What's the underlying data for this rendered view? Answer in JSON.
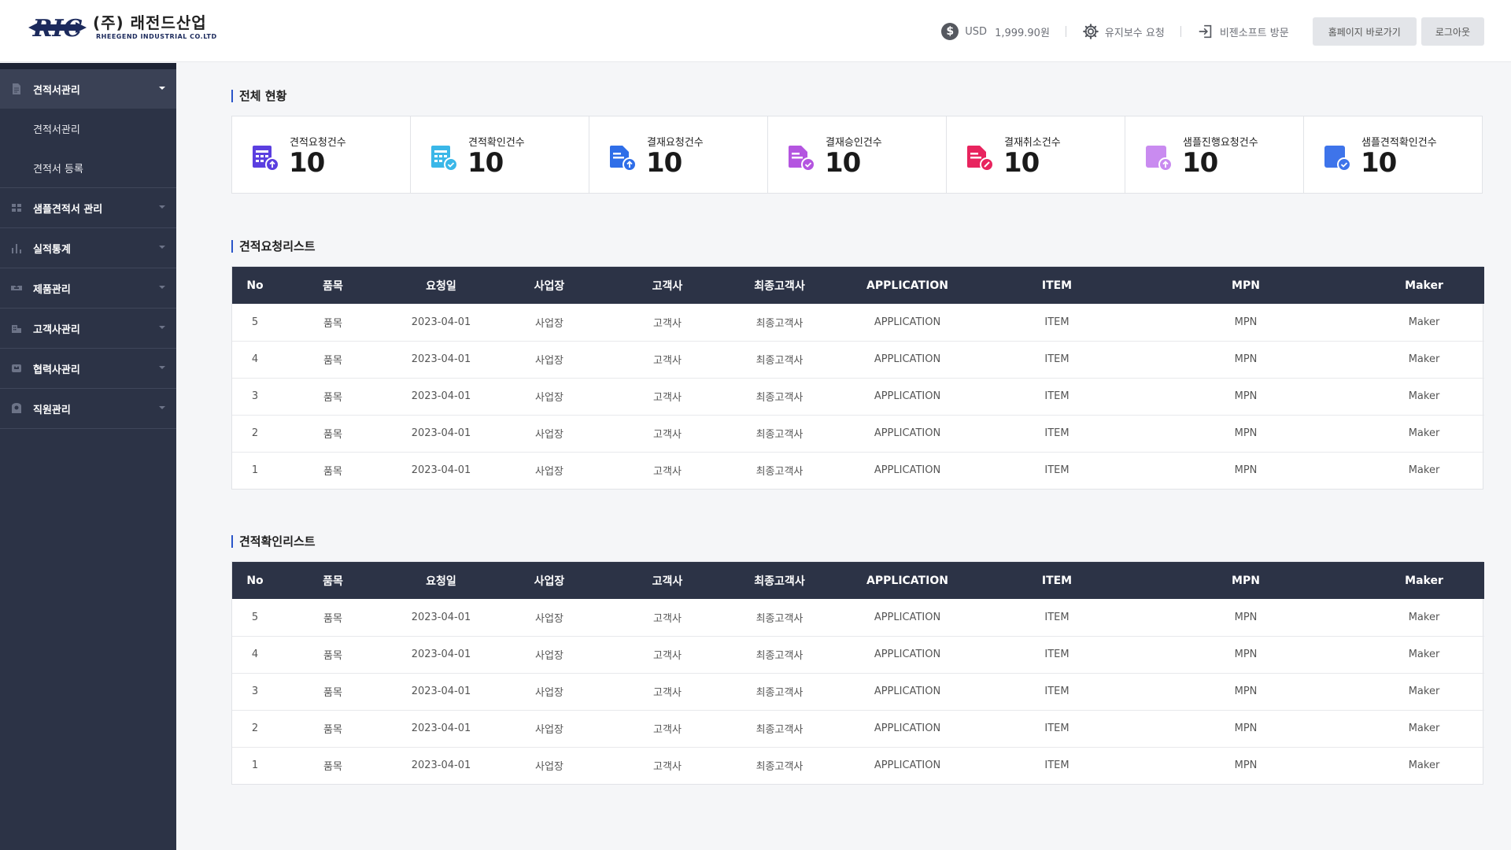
{
  "header": {
    "logo_kor": "(주) 래전드산업",
    "logo_eng": "RHEEGEND INDUSTRIAL CO.LTD",
    "logo_mark": "RIC",
    "usd_label": "USD",
    "usd_value": "1,999.90원",
    "maintenance": "유지보수 요청",
    "visit": "비젠소프트 방문",
    "home_button": "홈페이지 바로가기",
    "logout_button": "로그아웃"
  },
  "sidebar": {
    "groups": [
      {
        "label": "견적서관리",
        "icon": "document-icon",
        "active": true,
        "items": [
          "견적서관리",
          "견적서 등록"
        ]
      },
      {
        "label": "샘플견적서 관리",
        "icon": "grid-icon"
      },
      {
        "label": "실적통계",
        "icon": "bar-chart-icon"
      },
      {
        "label": "제품관리",
        "icon": "box-icon"
      },
      {
        "label": "고객사관리",
        "icon": "building-icon"
      },
      {
        "label": "협력사관리",
        "icon": "handshake-icon"
      },
      {
        "label": "직원관리",
        "icon": "user-icon"
      }
    ]
  },
  "overview": {
    "title": "전체 현황",
    "stats": [
      {
        "label": "견적요청건수",
        "value": "10",
        "color": "#5b3fe0",
        "badge": "#5b3fe0",
        "icon": "quote-request-icon"
      },
      {
        "label": "견적확인건수",
        "value": "10",
        "color": "#3ab7e8",
        "badge": "#3ab7e8",
        "icon": "quote-confirm-icon"
      },
      {
        "label": "결재요청건수",
        "value": "10",
        "color": "#2f6ee8",
        "badge": "#2f6ee8",
        "icon": "approval-request-icon"
      },
      {
        "label": "결재승인건수",
        "value": "10",
        "color": "#b455e0",
        "badge": "#b455e0",
        "icon": "approval-approve-icon"
      },
      {
        "label": "결재취소건수",
        "value": "10",
        "color": "#e8245e",
        "badge": "#e8245e",
        "icon": "approval-cancel-icon"
      },
      {
        "label": "샘플진행요청건수",
        "value": "10",
        "color": "#c98bf0",
        "badge": "#c98bf0",
        "icon": "sample-request-icon"
      },
      {
        "label": "샘플견적확인건수",
        "value": "10",
        "color": "#3e74ea",
        "badge": "#3e74ea",
        "icon": "sample-confirm-icon"
      }
    ]
  },
  "request_list": {
    "title": "견적요청리스트",
    "columns": [
      "No",
      "품목",
      "요청일",
      "사업장",
      "고객사",
      "최종고객사",
      "APPLICATION",
      "ITEM",
      "MPN",
      "Maker"
    ],
    "rows": [
      [
        "5",
        "품목",
        "2023-04-01",
        "사업장",
        "고객사",
        "최종고객사",
        "APPLICATION",
        "ITEM",
        "MPN",
        "Maker"
      ],
      [
        "4",
        "품목",
        "2023-04-01",
        "사업장",
        "고객사",
        "최종고객사",
        "APPLICATION",
        "ITEM",
        "MPN",
        "Maker"
      ],
      [
        "3",
        "품목",
        "2023-04-01",
        "사업장",
        "고객사",
        "최종고객사",
        "APPLICATION",
        "ITEM",
        "MPN",
        "Maker"
      ],
      [
        "2",
        "품목",
        "2023-04-01",
        "사업장",
        "고객사",
        "최종고객사",
        "APPLICATION",
        "ITEM",
        "MPN",
        "Maker"
      ],
      [
        "1",
        "품목",
        "2023-04-01",
        "사업장",
        "고객사",
        "최종고객사",
        "APPLICATION",
        "ITEM",
        "MPN",
        "Maker"
      ]
    ]
  },
  "confirm_list": {
    "title": "견적확인리스트",
    "columns": [
      "No",
      "품목",
      "요청일",
      "사업장",
      "고객사",
      "최종고객사",
      "APPLICATION",
      "ITEM",
      "MPN",
      "Maker"
    ],
    "rows": [
      [
        "5",
        "품목",
        "2023-04-01",
        "사업장",
        "고객사",
        "최종고객사",
        "APPLICATION",
        "ITEM",
        "MPN",
        "Maker"
      ],
      [
        "4",
        "품목",
        "2023-04-01",
        "사업장",
        "고객사",
        "최종고객사",
        "APPLICATION",
        "ITEM",
        "MPN",
        "Maker"
      ],
      [
        "3",
        "품목",
        "2023-04-01",
        "사업장",
        "고객사",
        "최종고객사",
        "APPLICATION",
        "ITEM",
        "MPN",
        "Maker"
      ],
      [
        "2",
        "품목",
        "2023-04-01",
        "사업장",
        "고객사",
        "최종고객사",
        "APPLICATION",
        "ITEM",
        "MPN",
        "Maker"
      ],
      [
        "1",
        "품목",
        "2023-04-01",
        "사업장",
        "고객사",
        "최종고객사",
        "APPLICATION",
        "ITEM",
        "MPN",
        "Maker"
      ]
    ]
  }
}
